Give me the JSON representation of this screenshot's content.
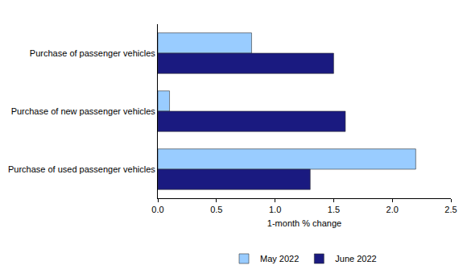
{
  "chart_data": {
    "type": "bar",
    "orientation": "horizontal",
    "x_label": "1-month % change",
    "categories": [
      "Purchase of passenger vehicles",
      "Purchase of new passenger vehicles",
      "Purchase of used passenger vehicles"
    ],
    "series": [
      {
        "name": "May 2022",
        "color": "#99ccff",
        "values": [
          0.8,
          0.1,
          2.2
        ]
      },
      {
        "name": "June 2022",
        "color": "#1a1a80",
        "values": [
          1.5,
          1.6,
          1.3
        ]
      }
    ],
    "xlim": [
      0,
      2.5
    ],
    "xticks": [
      {
        "value": 0,
        "label": "0.0"
      },
      0.5,
      {
        "value": 1,
        "label": "1.0"
      },
      1.5,
      {
        "value": 2,
        "label": "2.0"
      },
      2.5
    ],
    "grid": false,
    "legend": "bottom"
  }
}
